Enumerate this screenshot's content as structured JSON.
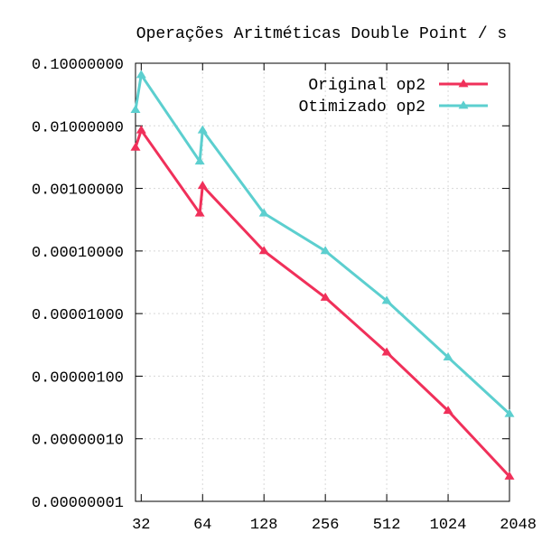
{
  "chart_data": {
    "type": "line",
    "title": "Operações Aritméticas Double Point / s",
    "xlabel": "",
    "ylabel": "",
    "x_scale": "log2",
    "y_scale": "log10",
    "xlim": [
      30,
      2048
    ],
    "ylim": [
      1e-08,
      0.1
    ],
    "x_ticks": [
      {
        "value": 32,
        "label": "32"
      },
      {
        "value": 64,
        "label": "64"
      },
      {
        "value": 128,
        "label": "128"
      },
      {
        "value": 256,
        "label": "256"
      },
      {
        "value": 512,
        "label": "512"
      },
      {
        "value": 1024,
        "label": "1024"
      },
      {
        "value": 2048,
        "label": "2048"
      }
    ],
    "y_ticks": [
      {
        "value": 0.1,
        "label": "0.10000000"
      },
      {
        "value": 0.01,
        "label": "0.01000000"
      },
      {
        "value": 0.001,
        "label": "0.00100000"
      },
      {
        "value": 0.0001,
        "label": "0.00010000"
      },
      {
        "value": 1e-05,
        "label": "0.00001000"
      },
      {
        "value": 1e-06,
        "label": "0.00000100"
      },
      {
        "value": 1e-07,
        "label": "0.00000010"
      },
      {
        "value": 1e-08,
        "label": "0.00000001"
      }
    ],
    "grid": true,
    "legend_position": "top-right",
    "series": [
      {
        "name": "Original op2",
        "color": "#f0305a",
        "marker": "triangle",
        "points": [
          {
            "x": 30,
            "y": 0.0045
          },
          {
            "x": 32,
            "y": 0.0085
          },
          {
            "x": 62,
            "y": 0.0004
          },
          {
            "x": 64,
            "y": 0.0011
          },
          {
            "x": 128,
            "y": 0.0001
          },
          {
            "x": 256,
            "y": 1.8e-05
          },
          {
            "x": 512,
            "y": 2.4e-06
          },
          {
            "x": 1024,
            "y": 2.8e-07
          },
          {
            "x": 2048,
            "y": 2.5e-08
          }
        ]
      },
      {
        "name": "Otimizado op2",
        "color": "#5ccfcf",
        "marker": "triangle",
        "points": [
          {
            "x": 30,
            "y": 0.018
          },
          {
            "x": 32,
            "y": 0.065
          },
          {
            "x": 62,
            "y": 0.0027
          },
          {
            "x": 64,
            "y": 0.0085
          },
          {
            "x": 128,
            "y": 0.0004
          },
          {
            "x": 256,
            "y": 0.0001
          },
          {
            "x": 512,
            "y": 1.6e-05
          },
          {
            "x": 1024,
            "y": 2e-06
          },
          {
            "x": 2048,
            "y": 2.5e-07
          }
        ]
      }
    ]
  }
}
